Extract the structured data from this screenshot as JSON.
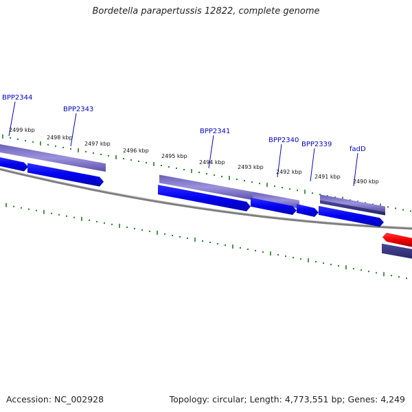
{
  "title": "Bordetella parapertussis 12822, complete genome",
  "footer": {
    "accession": "Accession: NC_002928",
    "summary": "Topology: circular; Length: 4,773,551 bp; Genes: 4,249"
  },
  "colors": {
    "backbone": "#7a7a7a",
    "tick": "#1e7a1e",
    "label": "#0000cc",
    "cds_forward": "#0000ee",
    "cds_reverse": "#ee0000",
    "gene_band": "#7e74c8",
    "gene_band_dark": "#0a0a5a"
  },
  "ruler": {
    "labels": [
      "2499 kbp",
      "2498 kbp",
      "2497 kbp",
      "2496 kbp",
      "2495 kbp",
      "2494 kbp",
      "2493 kbp",
      "2492 kbp",
      "2491 kbp",
      "2490 kbp"
    ]
  },
  "genes": [
    {
      "name": "BPP2344"
    },
    {
      "name": "BPP2343"
    },
    {
      "name": "BPP2341"
    },
    {
      "name": "BPP2340"
    },
    {
      "name": "BPP2339"
    },
    {
      "name": "fadD"
    }
  ]
}
